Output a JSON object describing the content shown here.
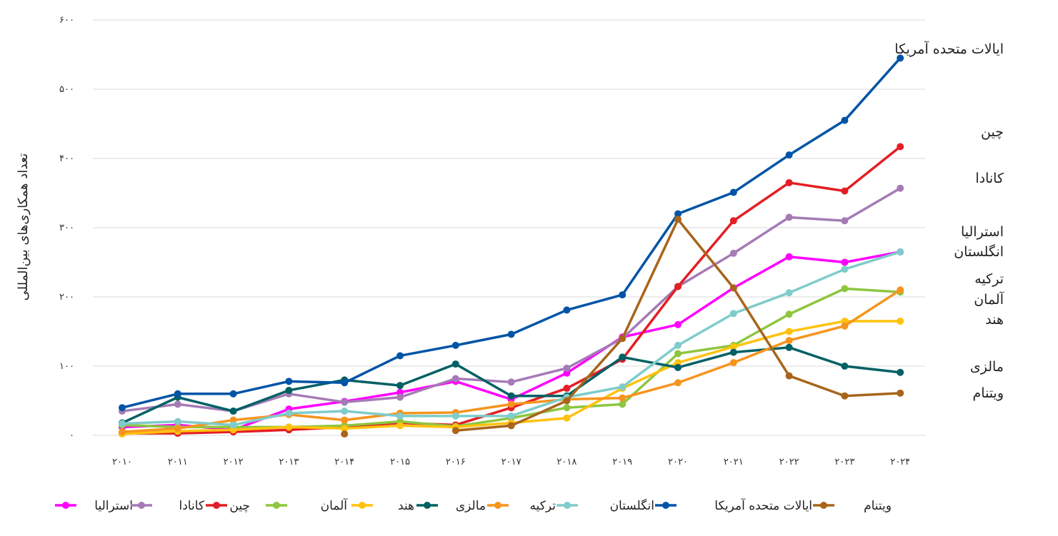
{
  "chart_data": {
    "type": "line",
    "ylabel": "تعداد همکاری‌های بین‌المللی",
    "xlabel": "",
    "ylim": [
      0,
      600
    ],
    "yticks": [
      0,
      100,
      200,
      300,
      400,
      500,
      600
    ],
    "ytick_labels": [
      "۰",
      "۱۰۰",
      "۲۰۰",
      "۳۰۰",
      "۴۰۰",
      "۵۰۰",
      "۶۰۰"
    ],
    "x": [
      2010,
      2011,
      2012,
      2013,
      2014,
      2015,
      2016,
      2017,
      2018,
      2019,
      2020,
      2021,
      2022,
      2023,
      2024
    ],
    "xtick_labels": [
      "۲۰۱۰",
      "۲۰۱۱",
      "۲۰۱۲",
      "۲۰۱۳",
      "۲۰۱۴",
      "۲۰۱۵",
      "۲۰۱۶",
      "۲۰۱۷",
      "۲۰۱۸",
      "۲۰۱۹",
      "۲۰۲۰",
      "۲۰۲۱",
      "۲۰۲۲",
      "۲۰۲۳",
      "۲۰۲۴"
    ],
    "grid": "horizontal",
    "legend": "bottom",
    "series": [
      {
        "name": "استرالیا",
        "color": "#FF00FF",
        "values": [
          12,
          15,
          8,
          38,
          49,
          62,
          78,
          52,
          90,
          142,
          160,
          213,
          258,
          250,
          265
        ]
      },
      {
        "name": "کانادا",
        "color": "#A57BB5",
        "values": [
          35,
          45,
          35,
          60,
          48,
          55,
          82,
          77,
          97,
          140,
          215,
          263,
          315,
          310,
          357
        ]
      },
      {
        "name": "چین",
        "color": "#E31E24",
        "values": [
          3,
          3,
          5,
          8,
          12,
          18,
          15,
          40,
          68,
          110,
          215,
          310,
          365,
          353,
          417
        ]
      },
      {
        "name": "آلمان",
        "color": "#8DC63F",
        "values": [
          15,
          12,
          12,
          12,
          14,
          20,
          13,
          25,
          40,
          45,
          118,
          130,
          175,
          212,
          207
        ]
      },
      {
        "name": "هند",
        "color": "#FFC20E",
        "values": [
          2,
          6,
          8,
          12,
          10,
          14,
          12,
          18,
          25,
          68,
          105,
          128,
          150,
          165,
          165
        ]
      },
      {
        "name": "مالزی",
        "color": "#006064",
        "values": [
          18,
          55,
          35,
          65,
          80,
          72,
          103,
          57,
          57,
          113,
          98,
          120,
          127,
          100,
          91
        ]
      },
      {
        "name": "ترکیه",
        "color": "#F7941D",
        "values": [
          5,
          10,
          22,
          30,
          22,
          32,
          33,
          45,
          52,
          54,
          76,
          105,
          137,
          158,
          210
        ]
      },
      {
        "name": "انگلستان",
        "color": "#7FCCCB",
        "values": [
          17,
          20,
          15,
          32,
          35,
          28,
          28,
          28,
          55,
          70,
          130,
          176,
          206,
          240,
          265
        ]
      },
      {
        "name": "ایالات متحده آمریکا",
        "color": "#0054A6",
        "values": [
          40,
          60,
          60,
          78,
          76,
          115,
          130,
          146,
          181,
          203,
          320,
          351,
          405,
          455,
          545
        ]
      },
      {
        "name": "ویتنام",
        "color": "#A8651B",
        "values": [
          null,
          null,
          null,
          null,
          2,
          null,
          7,
          14,
          50,
          140,
          312,
          213,
          86,
          57,
          61
        ]
      }
    ],
    "end_labels": [
      "ایالات متحده آمریکا",
      "چین",
      "کانادا",
      "استرالیا",
      "انگلستان",
      "ترکیه",
      "آلمان",
      "هند",
      "مالزی",
      "ویتنام"
    ]
  }
}
